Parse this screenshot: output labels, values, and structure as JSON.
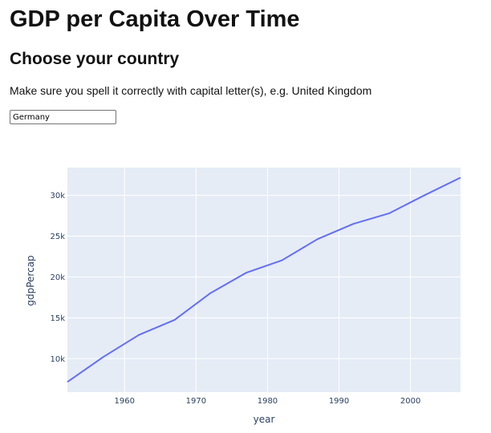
{
  "header": {
    "title": "GDP per Capita Over Time",
    "subtitle": "Choose your country",
    "instruction": "Make sure you spell it correctly with capital letter(s), e.g. United Kingdom"
  },
  "country_input": {
    "value": "Germany"
  },
  "colors": {
    "plot_background": "#e5ecf6",
    "line": "#636efa",
    "gridline": "#ffffff",
    "axis_text": "#2a3f5f"
  },
  "chart_data": {
    "type": "line",
    "title": "",
    "xlabel": "year",
    "ylabel": "gdpPercap",
    "x": [
      1952,
      1957,
      1962,
      1967,
      1972,
      1977,
      1982,
      1987,
      1992,
      1997,
      2002,
      2007
    ],
    "series": [
      {
        "values": [
          7144,
          10188,
          12903,
          14746,
          18016,
          20513,
          22032,
          24639,
          26505,
          27789,
          30036,
          32170
        ]
      }
    ],
    "xlim": [
      1952,
      2007
    ],
    "ylim": [
      5900,
      33400
    ],
    "x_ticks": [
      1960,
      1970,
      1980,
      1990,
      2000
    ],
    "x_tick_labels": [
      "1960",
      "1970",
      "1980",
      "1990",
      "2000"
    ],
    "y_ticks": [
      10000,
      15000,
      20000,
      25000,
      30000
    ],
    "y_tick_labels": [
      "10k",
      "15k",
      "20k",
      "25k",
      "30k"
    ],
    "grid": true,
    "legend": "none"
  }
}
